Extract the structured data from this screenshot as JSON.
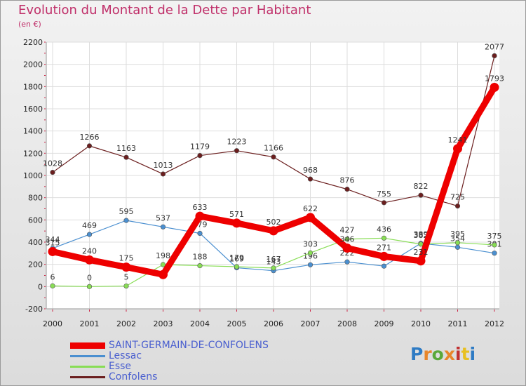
{
  "title": "Evolution du Montant de la Dette par Habitant",
  "unit": "(en €)",
  "logo": {
    "letters": [
      "P",
      "r",
      "o",
      "x",
      "i",
      "t",
      "i"
    ],
    "colors": [
      "#2e7bc4",
      "#e8862a",
      "#5aa83a",
      "#e8862a",
      "#c03030",
      "#e8c020",
      "#2e7bc4"
    ]
  },
  "chart_data": {
    "type": "line",
    "x": [
      "2000",
      "2001",
      "2002",
      "2003",
      "2004",
      "2005",
      "2006",
      "2007",
      "2008",
      "2009",
      "2010",
      "2011",
      "2012"
    ],
    "ylim": [
      -200,
      2200
    ],
    "yticks": [
      "-200",
      "0",
      "200",
      "400",
      "600",
      "800",
      "1000",
      "1200",
      "1400",
      "1600",
      "1800",
      "2000",
      "2200"
    ],
    "grid": true,
    "legend_position": "bottom",
    "series": [
      {
        "name": "Confolens",
        "color": "#6b1e1e",
        "values": [
          1028,
          1266,
          1163,
          1013,
          1179,
          1223,
          1166,
          968,
          876,
          755,
          822,
          725,
          2077
        ],
        "labels": [
          "1028",
          "1266",
          "1163",
          "1013",
          "1179",
          "1223",
          "1166",
          "968",
          "876",
          "755",
          "822",
          "725",
          "2077"
        ]
      },
      {
        "name": "Lessac",
        "color": "#4a8fd0",
        "values": [
          344,
          469,
          595,
          537,
          479,
          169,
          143,
          196,
          222,
          184,
          389,
          354,
          301
        ],
        "labels": [
          "344",
          "469",
          "595",
          "537",
          "479",
          "169",
          "143",
          "196",
          "222",
          "",
          "389",
          "354",
          "301"
        ]
      },
      {
        "name": "Esse",
        "color": "#88dd55",
        "values": [
          6,
          0,
          5,
          198,
          188,
          179,
          167,
          303,
          427,
          436,
          382,
          395,
          375
        ],
        "labels": [
          "6",
          "0",
          "5",
          "198",
          "188",
          "179",
          "167",
          "303",
          "427",
          "436",
          "382",
          "395",
          "375"
        ]
      },
      {
        "name": "SAINT-GERMAIN-DE-CONFOLENS",
        "color": "#ee0000",
        "values": [
          315,
          240,
          175,
          108,
          633,
          571,
          502,
          622,
          346,
          271,
          231,
          1241,
          1793
        ],
        "labels": [
          "315",
          "240",
          "175",
          "",
          "633",
          "571",
          "502",
          "622",
          "346",
          "271",
          "231",
          "1241",
          "1793"
        ]
      }
    ]
  },
  "legend": [
    {
      "name": "SAINT-GERMAIN-DE-CONFOLENS",
      "color": "#ee0000",
      "thick": true
    },
    {
      "name": "Lessac",
      "color": "#4a8fd0",
      "thick": false
    },
    {
      "name": "Esse",
      "color": "#88dd55",
      "thick": false
    },
    {
      "name": "Confolens",
      "color": "#6b1e1e",
      "thick": false
    }
  ]
}
